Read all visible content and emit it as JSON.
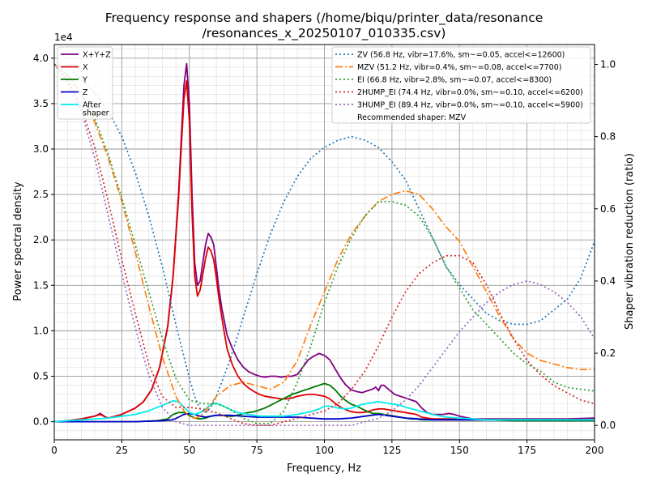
{
  "chart_data": {
    "type": "line",
    "title_line1": "Frequency response and shapers (/home/biqu/printer_data/resonance",
    "title_line2": "/resonances_x_20250107_010335.csv)",
    "xlabel": "Frequency, Hz",
    "ylabel_left": "Power spectral density",
    "ylabel_right": "Shaper vibration reduction (ratio)",
    "y_left_offset_label": "1e4",
    "xlim": [
      0,
      200
    ],
    "ylim_left": [
      -0.2,
      4.15
    ],
    "ylim_right": [
      -0.04,
      1.055
    ],
    "x_ticks": [
      0,
      25,
      50,
      75,
      100,
      125,
      150,
      175,
      200
    ],
    "y_left_ticks": [
      0.0,
      0.5,
      1.0,
      1.5,
      2.0,
      2.5,
      3.0,
      3.5,
      4.0
    ],
    "y_right_ticks": [
      0.0,
      0.2,
      0.4,
      0.6,
      0.8,
      1.0
    ],
    "grid": true,
    "legend_left": {
      "placement": "top-left",
      "entries": [
        "X+Y+Z",
        "X",
        "Y",
        "Z",
        "After\nshaper"
      ]
    },
    "legend_right": {
      "placement": "top-right",
      "entries": [
        "ZV (56.8 Hz, vibr=17.6%, sm~=0.05, accel<=12600)",
        "MZV (51.2 Hz, vibr=0.4%, sm~=0.08, accel<=7700)",
        "EI (66.8 Hz, vibr=2.8%, sm~=0.07, accel<=8300)",
        "2HUMP_EI (74.4 Hz, vibr=0.0%, sm~=0.10, accel<=6200)",
        "3HUMP_EI (89.4 Hz, vibr=0.0%, sm~=0.10, accel<=5900)"
      ],
      "note": "Recommended shaper: MZV"
    },
    "series": [
      {
        "name": "X+Y+Z",
        "axis": "left",
        "color": "#800080",
        "style": "solid",
        "x": [
          0,
          5,
          10,
          15,
          17,
          19,
          20,
          25,
          30,
          33,
          36,
          39,
          42,
          44,
          46,
          47,
          48,
          49,
          50,
          51,
          52,
          53,
          54,
          55,
          56,
          57,
          58,
          59,
          60,
          61,
          62,
          63,
          64,
          66,
          68,
          70,
          72,
          74,
          76,
          78,
          80,
          82,
          84,
          86,
          88,
          90,
          92,
          94,
          96,
          98,
          100,
          102,
          104,
          106,
          108,
          110,
          112,
          114,
          116,
          118,
          119,
          120,
          121,
          122,
          124,
          126,
          128,
          130,
          132,
          134,
          136,
          138,
          140,
          142,
          144,
          146,
          148,
          150,
          155,
          160,
          170,
          180,
          190,
          200
        ],
        "y": [
          0.0,
          0.01,
          0.03,
          0.06,
          0.09,
          0.05,
          0.04,
          0.08,
          0.15,
          0.22,
          0.35,
          0.6,
          1.05,
          1.6,
          2.5,
          3.1,
          3.7,
          3.94,
          3.5,
          2.5,
          1.75,
          1.5,
          1.55,
          1.75,
          1.95,
          2.07,
          2.03,
          1.95,
          1.7,
          1.45,
          1.25,
          1.1,
          0.95,
          0.8,
          0.68,
          0.6,
          0.55,
          0.52,
          0.5,
          0.49,
          0.5,
          0.5,
          0.49,
          0.5,
          0.5,
          0.52,
          0.6,
          0.68,
          0.72,
          0.75,
          0.73,
          0.68,
          0.58,
          0.48,
          0.4,
          0.35,
          0.33,
          0.32,
          0.34,
          0.36,
          0.38,
          0.34,
          0.4,
          0.4,
          0.35,
          0.3,
          0.28,
          0.26,
          0.24,
          0.22,
          0.15,
          0.1,
          0.08,
          0.08,
          0.08,
          0.09,
          0.08,
          0.06,
          0.03,
          0.03,
          0.03,
          0.03,
          0.03,
          0.04
        ]
      },
      {
        "name": "X",
        "axis": "left",
        "color": "#dd0000",
        "style": "solid",
        "x": [
          0,
          5,
          10,
          15,
          17,
          19,
          20,
          25,
          30,
          33,
          36,
          39,
          42,
          44,
          46,
          47,
          48,
          49,
          50,
          51,
          52,
          53,
          54,
          55,
          56,
          57,
          58,
          59,
          60,
          61,
          62,
          63,
          64,
          66,
          68,
          70,
          72,
          74,
          76,
          78,
          80,
          82,
          84,
          86,
          88,
          90,
          92,
          94,
          96,
          98,
          100,
          102,
          104,
          106,
          108,
          110,
          112,
          114,
          116,
          118,
          120,
          122,
          124,
          126,
          128,
          130,
          132,
          134,
          136,
          138,
          140,
          142,
          144,
          146,
          148,
          150,
          155,
          160,
          170,
          180,
          190,
          200
        ],
        "y": [
          0.0,
          0.01,
          0.03,
          0.06,
          0.08,
          0.05,
          0.04,
          0.08,
          0.15,
          0.22,
          0.35,
          0.6,
          1.05,
          1.6,
          2.45,
          3.0,
          3.55,
          3.75,
          3.3,
          2.3,
          1.6,
          1.38,
          1.45,
          1.62,
          1.8,
          1.92,
          1.88,
          1.78,
          1.58,
          1.35,
          1.15,
          0.97,
          0.8,
          0.62,
          0.5,
          0.42,
          0.37,
          0.33,
          0.3,
          0.28,
          0.27,
          0.26,
          0.25,
          0.25,
          0.26,
          0.28,
          0.29,
          0.3,
          0.3,
          0.29,
          0.28,
          0.25,
          0.2,
          0.16,
          0.13,
          0.11,
          0.1,
          0.1,
          0.11,
          0.13,
          0.14,
          0.14,
          0.13,
          0.12,
          0.11,
          0.1,
          0.09,
          0.08,
          0.05,
          0.04,
          0.03,
          0.03,
          0.03,
          0.03,
          0.03,
          0.02,
          0.02,
          0.02,
          0.02,
          0.02,
          0.02,
          0.02
        ]
      },
      {
        "name": "Y",
        "axis": "left",
        "color": "#007700",
        "style": "solid",
        "x": [
          0,
          10,
          20,
          30,
          38,
          42,
          44,
          46,
          48,
          50,
          52,
          54,
          56,
          58,
          60,
          62,
          64,
          66,
          68,
          70,
          72,
          74,
          76,
          78,
          80,
          82,
          84,
          86,
          88,
          90,
          92,
          94,
          96,
          98,
          100,
          102,
          104,
          106,
          108,
          110,
          112,
          114,
          116,
          118,
          120,
          122,
          124,
          126,
          128,
          130,
          132,
          134,
          136,
          140,
          145,
          150,
          160,
          170,
          180,
          190,
          200
        ],
        "y": [
          0,
          0,
          0,
          0,
          0.01,
          0.03,
          0.08,
          0.1,
          0.1,
          0.07,
          0.04,
          0.03,
          0.04,
          0.06,
          0.07,
          0.07,
          0.06,
          0.06,
          0.07,
          0.09,
          0.1,
          0.11,
          0.13,
          0.15,
          0.18,
          0.21,
          0.24,
          0.27,
          0.3,
          0.32,
          0.34,
          0.36,
          0.38,
          0.4,
          0.42,
          0.4,
          0.35,
          0.28,
          0.23,
          0.19,
          0.17,
          0.14,
          0.11,
          0.09,
          0.09,
          0.08,
          0.07,
          0.06,
          0.05,
          0.04,
          0.03,
          0.03,
          0.02,
          0.02,
          0.02,
          0.02,
          0.02,
          0.01,
          0.01,
          0.01,
          0.01
        ]
      },
      {
        "name": "Z",
        "axis": "left",
        "color": "#0000cc",
        "style": "solid",
        "x": [
          0,
          10,
          20,
          30,
          40,
          44,
          46,
          48,
          50,
          52,
          54,
          56,
          58,
          60,
          65,
          70,
          75,
          80,
          85,
          90,
          95,
          100,
          105,
          110,
          115,
          120,
          125,
          130,
          140,
          150,
          160,
          170,
          180,
          190,
          200
        ],
        "y": [
          0,
          0,
          0,
          0,
          0.01,
          0.02,
          0.05,
          0.08,
          0.09,
          0.08,
          0.06,
          0.05,
          0.06,
          0.07,
          0.07,
          0.06,
          0.05,
          0.05,
          0.05,
          0.05,
          0.04,
          0.03,
          0.03,
          0.04,
          0.06,
          0.08,
          0.06,
          0.04,
          0.02,
          0.02,
          0.02,
          0.02,
          0.02,
          0.02,
          0.02
        ]
      },
      {
        "name": "After\nshaper",
        "axis": "left",
        "color": "#00eeee",
        "style": "solid",
        "x": [
          0,
          10,
          20,
          25,
          30,
          35,
          40,
          44,
          46,
          48,
          50,
          52,
          54,
          56,
          58,
          60,
          62,
          64,
          66,
          68,
          70,
          72,
          74,
          76,
          78,
          80,
          85,
          90,
          95,
          98,
          100,
          102,
          105,
          108,
          110,
          112,
          114,
          116,
          118,
          120,
          122,
          124,
          126,
          128,
          130,
          135,
          140,
          145,
          150,
          155,
          160,
          170,
          180,
          190,
          200
        ],
        "y": [
          0,
          0.02,
          0.04,
          0.06,
          0.08,
          0.12,
          0.18,
          0.23,
          0.22,
          0.16,
          0.1,
          0.08,
          0.1,
          0.14,
          0.19,
          0.2,
          0.18,
          0.15,
          0.12,
          0.1,
          0.09,
          0.08,
          0.07,
          0.06,
          0.06,
          0.06,
          0.06,
          0.08,
          0.11,
          0.14,
          0.17,
          0.17,
          0.15,
          0.14,
          0.15,
          0.17,
          0.19,
          0.2,
          0.21,
          0.22,
          0.21,
          0.2,
          0.19,
          0.18,
          0.16,
          0.12,
          0.08,
          0.05,
          0.04,
          0.03,
          0.02,
          0.02,
          0.02,
          0.02,
          0.02
        ]
      },
      {
        "name": "ZV (56.8 Hz, vibr=17.6%, sm~=0.05, accel<=12600)",
        "axis": "right",
        "color": "#1f77b4",
        "style": "dotted",
        "x": [
          0,
          5,
          10,
          15,
          20,
          25,
          30,
          35,
          40,
          45,
          50,
          52,
          54,
          56,
          58,
          60,
          65,
          70,
          75,
          80,
          85,
          90,
          95,
          100,
          105,
          110,
          115,
          120,
          125,
          130,
          135,
          140,
          145,
          150,
          155,
          160,
          165,
          170,
          175,
          180,
          185,
          190,
          195,
          200
        ],
        "y": [
          1.0,
          0.99,
          0.96,
          0.92,
          0.87,
          0.8,
          0.7,
          0.58,
          0.44,
          0.28,
          0.13,
          0.08,
          0.045,
          0.035,
          0.05,
          0.08,
          0.18,
          0.3,
          0.42,
          0.53,
          0.62,
          0.69,
          0.74,
          0.77,
          0.79,
          0.8,
          0.79,
          0.77,
          0.73,
          0.68,
          0.6,
          0.52,
          0.44,
          0.39,
          0.35,
          0.31,
          0.29,
          0.28,
          0.28,
          0.29,
          0.32,
          0.35,
          0.41,
          0.51
        ]
      },
      {
        "name": "MZV (51.2 Hz, vibr=0.4%, sm~=0.08, accel<=7700)",
        "axis": "right",
        "color": "#ff7f0e",
        "style": "dashdot",
        "x": [
          0,
          5,
          10,
          15,
          20,
          25,
          30,
          35,
          40,
          45,
          48,
          50,
          52,
          54,
          56,
          58,
          60,
          65,
          70,
          75,
          80,
          85,
          90,
          95,
          100,
          105,
          110,
          115,
          120,
          125,
          130,
          135,
          140,
          145,
          150,
          155,
          160,
          165,
          170,
          175,
          180,
          185,
          190,
          195,
          200
        ],
        "y": [
          1.0,
          0.97,
          0.92,
          0.84,
          0.74,
          0.62,
          0.48,
          0.33,
          0.19,
          0.08,
          0.04,
          0.025,
          0.02,
          0.025,
          0.04,
          0.06,
          0.08,
          0.11,
          0.12,
          0.11,
          0.1,
          0.12,
          0.18,
          0.28,
          0.37,
          0.46,
          0.53,
          0.58,
          0.62,
          0.64,
          0.65,
          0.64,
          0.6,
          0.55,
          0.51,
          0.44,
          0.37,
          0.3,
          0.24,
          0.2,
          0.18,
          0.17,
          0.16,
          0.155,
          0.155
        ]
      },
      {
        "name": "EI (66.8 Hz, vibr=2.8%, sm~=0.07, accel<=8300)",
        "axis": "right",
        "color": "#2ca02c",
        "style": "dotted",
        "x": [
          0,
          5,
          10,
          15,
          20,
          25,
          30,
          35,
          40,
          45,
          50,
          55,
          58,
          60,
          62,
          65,
          68,
          70,
          75,
          80,
          85,
          90,
          95,
          100,
          105,
          110,
          115,
          120,
          125,
          130,
          135,
          140,
          145,
          150,
          155,
          160,
          165,
          170,
          175,
          180,
          185,
          190,
          195,
          200
        ],
        "y": [
          1.0,
          0.97,
          0.92,
          0.85,
          0.75,
          0.63,
          0.5,
          0.37,
          0.24,
          0.13,
          0.07,
          0.06,
          0.06,
          0.06,
          0.055,
          0.045,
          0.03,
          0.02,
          0.005,
          0.005,
          0.04,
          0.12,
          0.22,
          0.34,
          0.44,
          0.52,
          0.58,
          0.62,
          0.62,
          0.61,
          0.58,
          0.52,
          0.44,
          0.38,
          0.32,
          0.28,
          0.24,
          0.2,
          0.17,
          0.15,
          0.12,
          0.105,
          0.1,
          0.095
        ]
      },
      {
        "name": "2HUMP_EI (74.4 Hz, vibr=0.0%, sm~=0.10, accel<=6200)",
        "axis": "right",
        "color": "#d62728",
        "style": "dotted",
        "x": [
          0,
          5,
          10,
          15,
          20,
          25,
          30,
          35,
          40,
          45,
          50,
          55,
          60,
          65,
          70,
          75,
          80,
          85,
          90,
          95,
          100,
          105,
          110,
          115,
          120,
          125,
          130,
          135,
          140,
          145,
          150,
          155,
          160,
          165,
          170,
          175,
          180,
          185,
          190,
          195,
          200
        ],
        "y": [
          1.0,
          0.96,
          0.88,
          0.77,
          0.62,
          0.46,
          0.31,
          0.17,
          0.08,
          0.05,
          0.05,
          0.045,
          0.035,
          0.02,
          0.005,
          0.0,
          0.0,
          0.01,
          0.02,
          0.03,
          0.04,
          0.06,
          0.1,
          0.15,
          0.22,
          0.3,
          0.37,
          0.42,
          0.45,
          0.47,
          0.47,
          0.45,
          0.39,
          0.31,
          0.24,
          0.18,
          0.14,
          0.11,
          0.09,
          0.07,
          0.06
        ]
      },
      {
        "name": "3HUMP_EI (89.4 Hz, vibr=0.0%, sm~=0.10, accel<=5900)",
        "axis": "right",
        "color": "#9467bd",
        "style": "dotted",
        "x": [
          0,
          5,
          10,
          15,
          20,
          25,
          30,
          35,
          40,
          45,
          50,
          55,
          60,
          70,
          80,
          90,
          100,
          110,
          115,
          120,
          125,
          130,
          135,
          140,
          145,
          150,
          155,
          160,
          165,
          170,
          175,
          180,
          185,
          190,
          195,
          200
        ],
        "y": [
          1.0,
          0.95,
          0.87,
          0.74,
          0.58,
          0.42,
          0.27,
          0.14,
          0.05,
          0.01,
          0.0,
          0.0,
          0.0,
          0.0,
          0.0,
          0.0,
          0.0,
          0.0,
          0.01,
          0.02,
          0.04,
          0.07,
          0.11,
          0.16,
          0.21,
          0.26,
          0.3,
          0.34,
          0.37,
          0.39,
          0.4,
          0.39,
          0.37,
          0.34,
          0.3,
          0.24
        ]
      }
    ]
  }
}
